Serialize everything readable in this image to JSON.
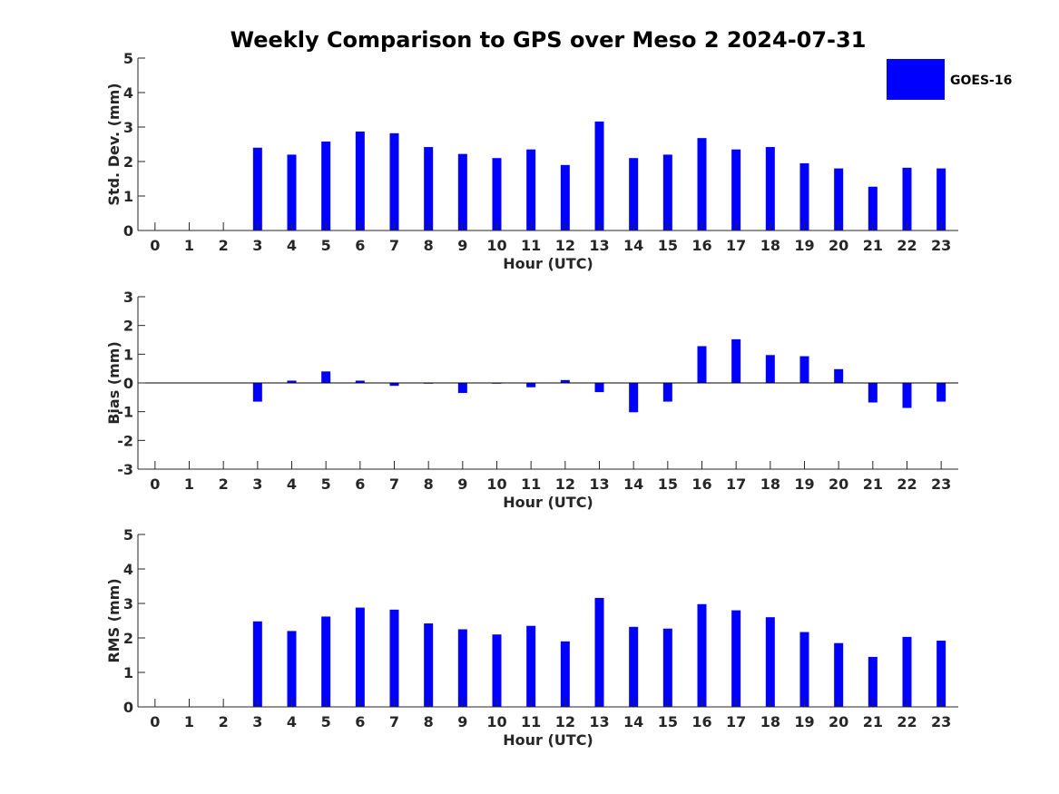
{
  "chart_data": {
    "title": "Weekly Comparison to GPS over Meso 2 2024-07-31",
    "type": "bar",
    "legend": {
      "label": "GOES-16",
      "color": "#0000ff",
      "position": "top-right"
    },
    "categories": [
      "0",
      "1",
      "2",
      "3",
      "4",
      "5",
      "6",
      "7",
      "8",
      "9",
      "10",
      "11",
      "12",
      "13",
      "14",
      "15",
      "16",
      "17",
      "18",
      "19",
      "20",
      "21",
      "22",
      "23"
    ],
    "panels": [
      {
        "name": "std-dev",
        "ylabel": "Std. Dev. (mm)",
        "xlabel": "Hour (UTC)",
        "ylim": [
          0,
          5
        ],
        "yticks": [
          0,
          1,
          2,
          3,
          4,
          5
        ],
        "values": [
          null,
          null,
          null,
          2.4,
          2.2,
          2.58,
          2.87,
          2.82,
          2.42,
          2.22,
          2.1,
          2.35,
          1.9,
          3.16,
          2.1,
          2.2,
          2.68,
          2.35,
          2.42,
          1.95,
          1.8,
          1.27,
          1.82,
          1.8
        ]
      },
      {
        "name": "bias",
        "ylabel": "Bias (mm)",
        "xlabel": "Hour (UTC)",
        "ylim": [
          -3,
          3
        ],
        "yticks": [
          -3,
          -2,
          -1,
          0,
          1,
          2,
          3
        ],
        "values": [
          null,
          null,
          null,
          -0.65,
          0.08,
          0.4,
          0.08,
          -0.1,
          0.0,
          -0.35,
          0.0,
          -0.15,
          0.1,
          -0.32,
          -1.02,
          -0.65,
          1.28,
          1.52,
          0.97,
          0.93,
          0.48,
          -0.68,
          -0.87,
          -0.65
        ]
      },
      {
        "name": "rms",
        "ylabel": "RMS (mm)",
        "xlabel": "Hour (UTC)",
        "ylim": [
          0,
          5
        ],
        "yticks": [
          0,
          1,
          2,
          3,
          4,
          5
        ],
        "values": [
          null,
          null,
          null,
          2.48,
          2.2,
          2.62,
          2.88,
          2.82,
          2.42,
          2.25,
          2.1,
          2.35,
          1.9,
          3.16,
          2.32,
          2.27,
          2.98,
          2.8,
          2.6,
          2.17,
          1.85,
          1.45,
          2.03,
          1.92
        ]
      }
    ]
  }
}
